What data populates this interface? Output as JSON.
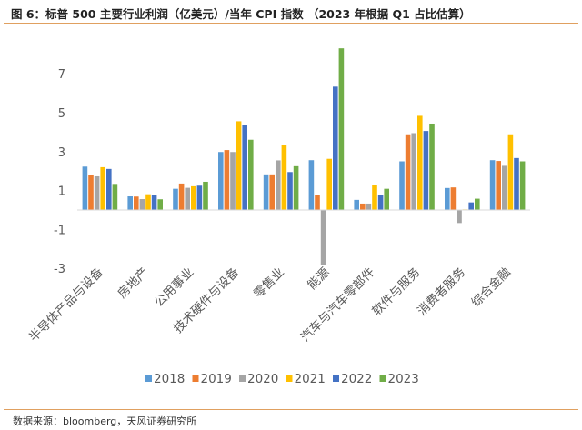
{
  "title": "图 6：标普 500 主要行业利润（亿美元）/当年 CPI 指数 （2023 年根据 Q1 占比估算）",
  "source": "数据来源：bloomberg，天风证券研究所",
  "chart_data": {
    "type": "bar",
    "title": "",
    "xlabel": "",
    "ylabel": "",
    "ylim": [
      -3,
      9
    ],
    "yticks": [
      -3,
      -1,
      1,
      3,
      5,
      7
    ],
    "grid": false,
    "legend_position": "bottom",
    "categories": [
      "半导体产品与设备",
      "房地产",
      "公用事业",
      "技术硬件与设备",
      "零售业",
      "能源",
      "汽车与汽车零部件",
      "软件与服务",
      "消费者服务",
      "综合金融"
    ],
    "series": [
      {
        "name": "2018",
        "color": "#5b9bd5",
        "values": [
          2.23,
          0.7,
          1.09,
          2.98,
          1.83,
          2.56,
          0.52,
          2.5,
          1.13,
          2.56
        ]
      },
      {
        "name": "2019",
        "color": "#ed7d31",
        "values": [
          1.81,
          0.69,
          1.36,
          3.08,
          1.83,
          0.75,
          0.33,
          3.89,
          1.16,
          2.52
        ]
      },
      {
        "name": "2020",
        "color": "#a5a5a5",
        "values": [
          1.73,
          0.56,
          1.14,
          2.98,
          2.55,
          -2.81,
          0.33,
          3.95,
          -0.67,
          2.27
        ]
      },
      {
        "name": "2021",
        "color": "#ffc000",
        "values": [
          2.2,
          0.81,
          1.22,
          4.56,
          3.36,
          2.63,
          1.3,
          4.84,
          0.03,
          3.89
        ]
      },
      {
        "name": "2022",
        "color": "#4472c4",
        "values": [
          2.11,
          0.78,
          1.25,
          4.38,
          1.95,
          6.34,
          0.78,
          4.06,
          0.39,
          2.67
        ]
      },
      {
        "name": "2023",
        "color": "#70ad47",
        "values": [
          1.34,
          0.55,
          1.45,
          3.61,
          2.25,
          8.31,
          1.09,
          4.44,
          0.58,
          2.5
        ]
      }
    ]
  }
}
